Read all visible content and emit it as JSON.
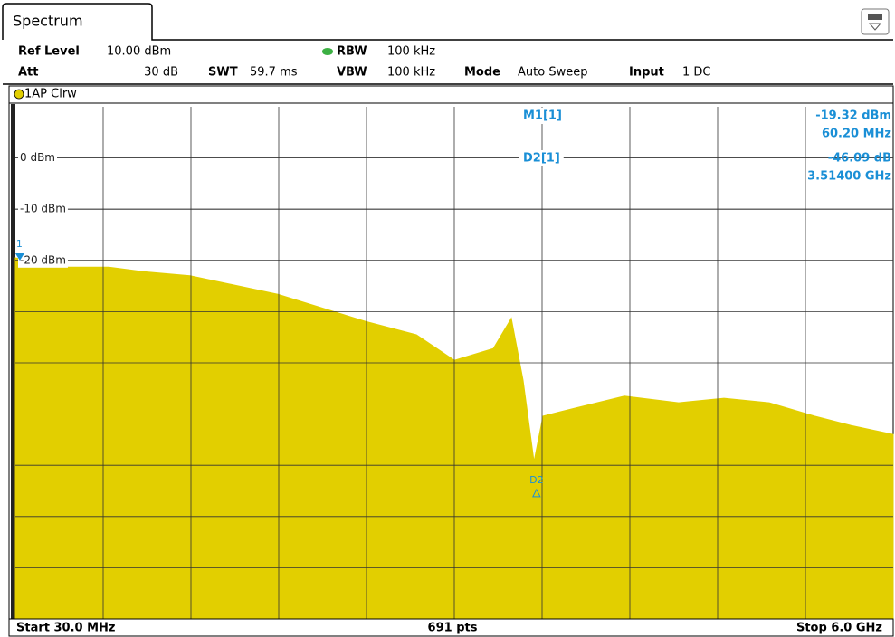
{
  "header": {
    "tab": "Spectrum",
    "ref_level": {
      "label": "Ref Level",
      "value": "10.00 dBm"
    },
    "att": {
      "label": "Att",
      "value": "30 dB"
    },
    "swt": {
      "label": "SWT",
      "value": "59.7 ms"
    },
    "rbw": {
      "label": "RBW",
      "value": "100 kHz"
    },
    "vbw": {
      "label": "VBW",
      "value": "100 kHz"
    },
    "mode": {
      "label": "Mode",
      "value": "Auto Sweep"
    },
    "input": {
      "label": "Input",
      "value": "1 DC"
    }
  },
  "marker_table": [
    {
      "name": "M1[1]",
      "level": "-19.32 dBm",
      "freq": "60.20 MHz"
    },
    {
      "name": "D2[1]",
      "level": "-46.09 dB",
      "freq": "3.51400 GHz"
    }
  ],
  "footer": {
    "start": "Start 30.0 MHz",
    "points": "691 pts",
    "stop": "Stop 6.0 GHz"
  },
  "chart_data": {
    "type": "area",
    "xlim": [
      30,
      6000
    ],
    "ylim": [
      -90,
      10
    ],
    "yticks": [
      {
        "value": 0,
        "label": "0 dBm"
      },
      {
        "value": -10,
        "label": "-10 dBm"
      },
      {
        "value": -20,
        "label": "-20 dBm"
      }
    ],
    "grid": true,
    "x": [
      30,
      296,
      665,
      900,
      1218,
      1815,
      2412,
      2757,
      3015,
      3280,
      3403,
      3483,
      3557,
      3618,
      3741,
      4172,
      4541,
      4849,
      5157,
      5465,
      5711,
      6000
    ],
    "series": [
      {
        "name": "1AP Clrw",
        "color": "#e2cf00",
        "values": [
          -19.5,
          -21.3,
          -21.3,
          -22.2,
          -23.0,
          -26.6,
          -31.9,
          -34.5,
          -39.5,
          -37.2,
          -31.3,
          -43.4,
          -59.3,
          -50.4,
          -49.5,
          -46.5,
          -47.8,
          -46.9,
          -47.8,
          -50.4,
          -52.2,
          -54.0
        ]
      }
    ],
    "markers": [
      {
        "label": "1",
        "x": 60.2,
        "y": -19.32
      },
      {
        "label": "D2",
        "x": 3574.2,
        "y": -65.41
      }
    ]
  }
}
